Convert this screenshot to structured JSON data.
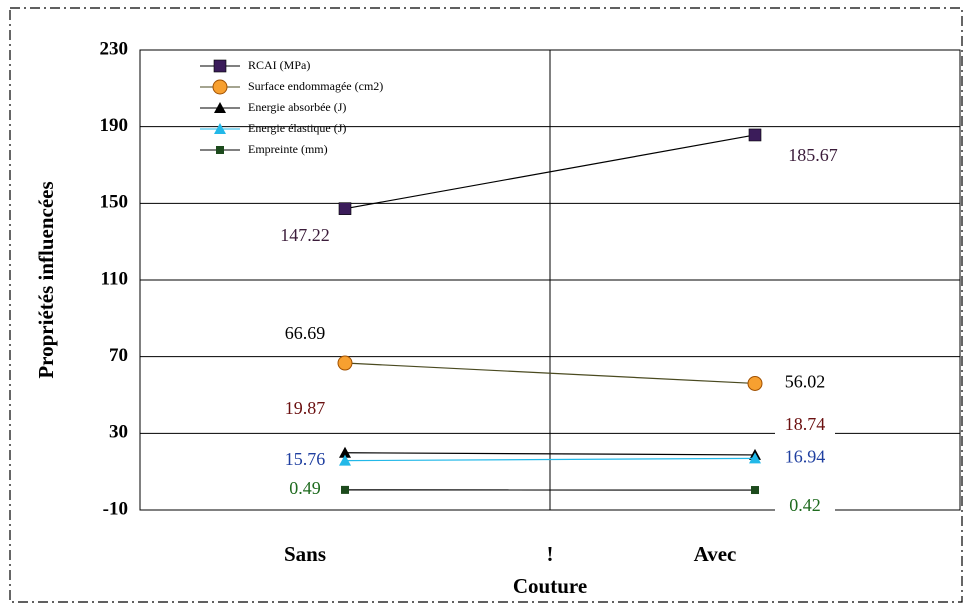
{
  "chart_data": {
    "type": "line",
    "x_label": "Couture",
    "y_label": "Propriétés influencées",
    "categories": [
      "Sans",
      "Avec"
    ],
    "annotation": "!",
    "ylim": [
      -10,
      230
    ],
    "yticks": [
      -10,
      30,
      70,
      110,
      150,
      190,
      230
    ],
    "grid": true,
    "legend": "top-left",
    "series": [
      {
        "name": "RCAI (MPa)",
        "color": "#3b1c5a",
        "line_color": "#000000",
        "marker": "square",
        "label_color": "#3b1c3a",
        "values": [
          147.22,
          185.67
        ]
      },
      {
        "name": "Surface endommagée (cm2)",
        "color": "#f7a030",
        "line_color": "#4a4a20",
        "marker": "circle",
        "label_color": "#000000",
        "values": [
          66.69,
          56.02
        ]
      },
      {
        "name": "Energie absorbée (J)",
        "color": "#000000",
        "line_color": "#000000",
        "marker": "triangle",
        "label_color": "#6b1010",
        "values": [
          19.87,
          18.74
        ]
      },
      {
        "name": "Energie élastique (J)",
        "color": "#22b8e8",
        "line_color": "#22b8e8",
        "marker": "triangle",
        "label_color": "#1f3fa0",
        "values": [
          15.76,
          16.94
        ]
      },
      {
        "name": "Empreinte (mm)",
        "color": "#1c4a1c",
        "line_color": "#000000",
        "marker": "smallsquare",
        "label_color": "#1f6b1f",
        "values": [
          0.49,
          0.42
        ]
      }
    ]
  }
}
